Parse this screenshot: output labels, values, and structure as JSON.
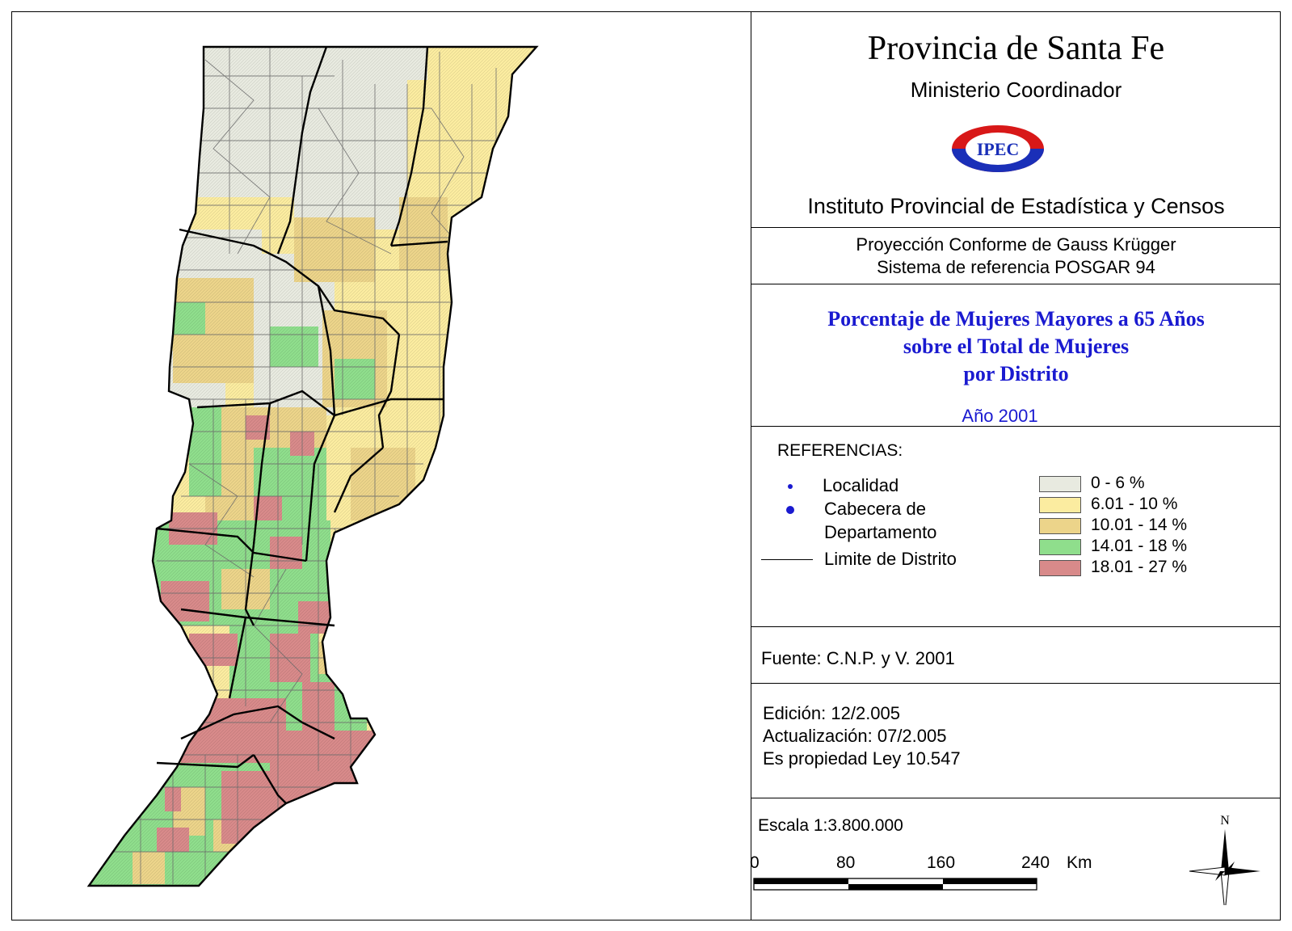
{
  "header": {
    "title": "Provincia de Santa Fe",
    "subtitle": "Ministerio Coordinador",
    "logo_text": "IPEC",
    "institute": "Instituto Provincial de Estadística y Censos"
  },
  "projection": {
    "line1": "Proyección Conforme de Gauss Krügger",
    "line2": "Sistema de referencia POSGAR 94"
  },
  "theme": {
    "line1": "Porcentaje de Mujeres Mayores a 65 Años",
    "line2": "sobre el Total de Mujeres",
    "line3": "por Distrito",
    "year": "Año 2001"
  },
  "legend": {
    "heading": "REFERENCIAS:",
    "symbols": {
      "localidad": "Localidad",
      "cabecera_1": "Cabecera de",
      "cabecera_2": "Departamento",
      "limite": "Limite de Distrito"
    },
    "classes": [
      {
        "label": "0 - 6 %",
        "color": "#e8eae0"
      },
      {
        "label": "6.01 - 10 %",
        "color": "#fbeca0"
      },
      {
        "label": "10.01 - 14 %",
        "color": "#ecd48a"
      },
      {
        "label": "14.01 - 18 %",
        "color": "#8fde8c"
      },
      {
        "label": "18.01 - 27 %",
        "color": "#d88a8a"
      }
    ],
    "symbol_color": "#1a1ad0"
  },
  "source": "Fuente:  C.N.P. y V. 2001",
  "edition": {
    "line1": "Edición:  12/2.005",
    "line2": "Actualización:  07/2.005",
    "line3": "Es propiedad Ley 10.547"
  },
  "scale": {
    "label": "Escala 1:3.800.000",
    "ticks": [
      "0",
      "80",
      "160",
      "240"
    ],
    "unit": "Km"
  },
  "north": "N"
}
